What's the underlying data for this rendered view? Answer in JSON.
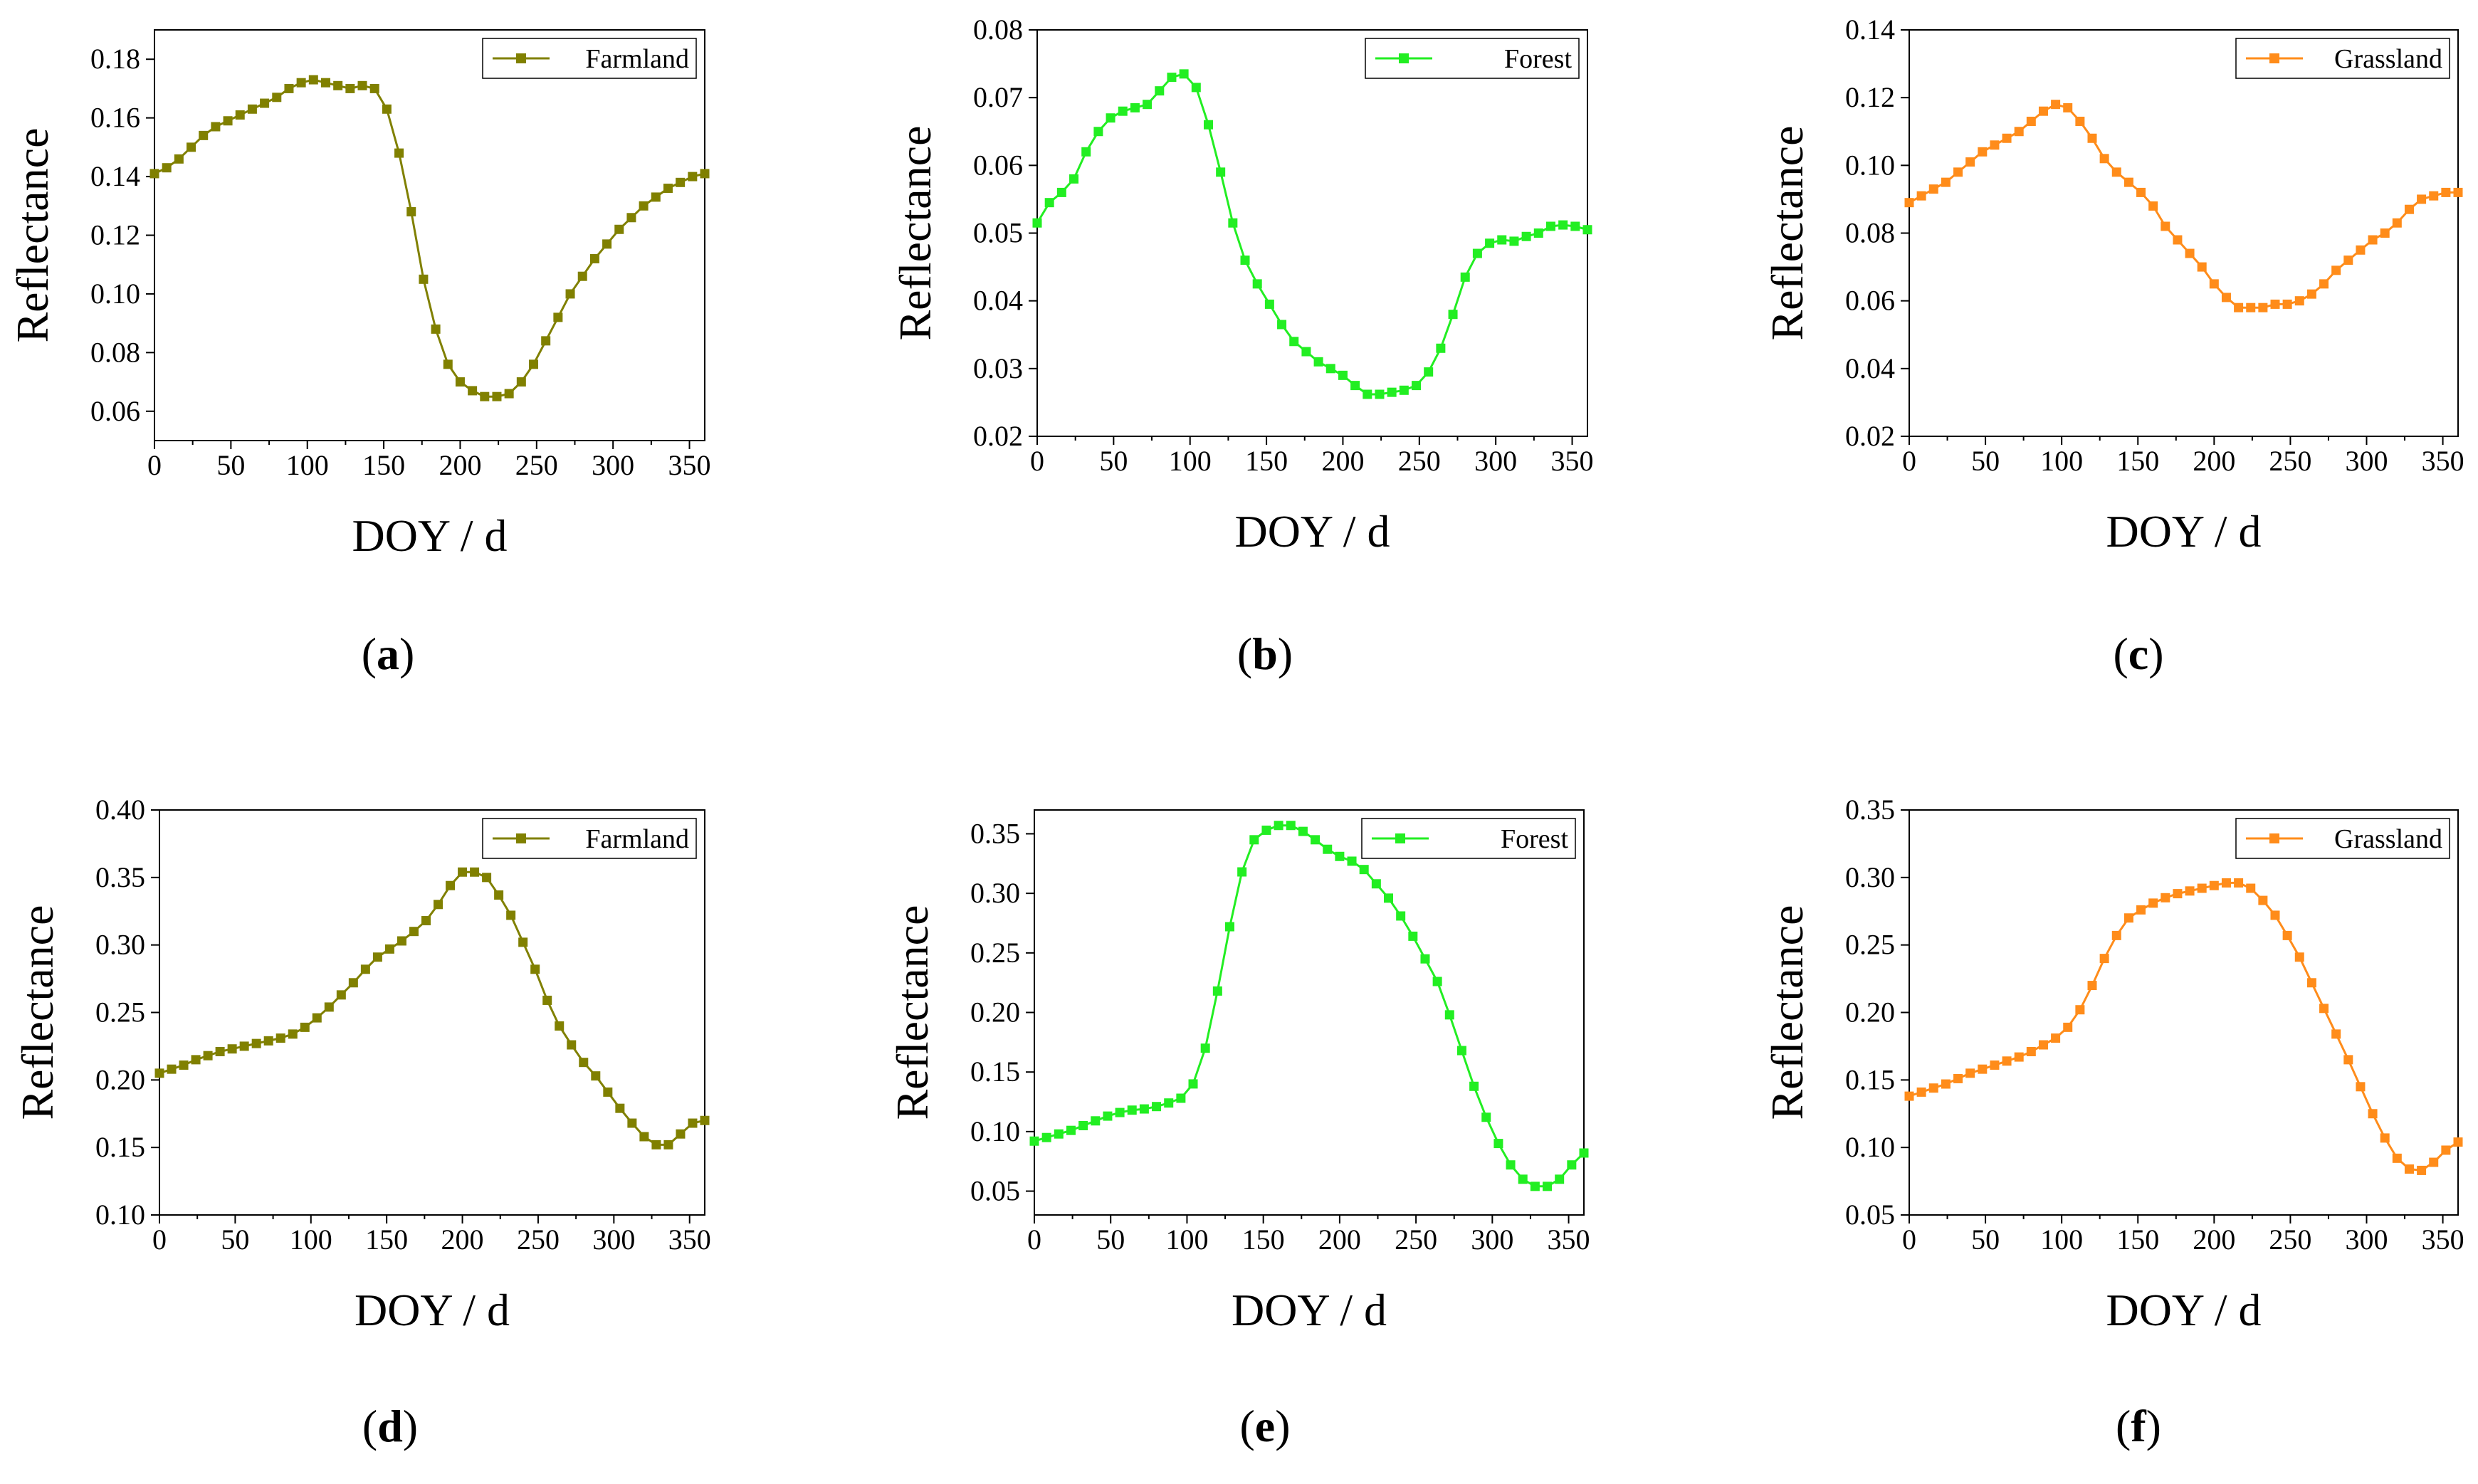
{
  "chart_data": [
    {
      "id": "a",
      "type": "line",
      "caption": "a",
      "xlabel": "DOY / d",
      "ylabel": "Reflectance",
      "xlim": [
        0,
        360
      ],
      "ylim": [
        0.05,
        0.19
      ],
      "xticks": [
        0,
        50,
        100,
        150,
        200,
        250,
        300,
        350
      ],
      "xtick_labels": [
        "0",
        "50",
        "100",
        "150",
        "200",
        "250",
        "300",
        "350"
      ],
      "yticks": [
        0.06,
        0.08,
        0.1,
        0.12,
        0.14,
        0.16,
        0.18
      ],
      "ytick_labels": [
        "0.06",
        "0.08",
        "0.10",
        "0.12",
        "0.14",
        "0.16",
        "0.18"
      ],
      "legend_position": "top-right",
      "series": [
        {
          "name": "Farmland",
          "color": "#808000",
          "x": [
            0,
            8,
            16,
            24,
            32,
            40,
            48,
            56,
            64,
            72,
            80,
            88,
            96,
            104,
            112,
            120,
            128,
            136,
            144,
            152,
            160,
            168,
            176,
            184,
            192,
            200,
            208,
            216,
            224,
            232,
            240,
            248,
            256,
            264,
            272,
            280,
            288,
            296,
            304,
            312,
            320,
            328,
            336,
            344,
            352,
            360
          ],
          "values": [
            0.141,
            0.143,
            0.146,
            0.15,
            0.154,
            0.157,
            0.159,
            0.161,
            0.163,
            0.165,
            0.167,
            0.17,
            0.172,
            0.173,
            0.172,
            0.171,
            0.17,
            0.171,
            0.17,
            0.163,
            0.148,
            0.128,
            0.105,
            0.088,
            0.076,
            0.07,
            0.067,
            0.065,
            0.065,
            0.066,
            0.07,
            0.076,
            0.084,
            0.092,
            0.1,
            0.106,
            0.112,
            0.117,
            0.122,
            0.126,
            0.13,
            0.133,
            0.136,
            0.138,
            0.14,
            0.141
          ]
        }
      ]
    },
    {
      "id": "b",
      "type": "line",
      "caption": "b",
      "xlabel": "DOY / d",
      "ylabel": "Reflectance",
      "xlim": [
        0,
        360
      ],
      "ylim": [
        0.02,
        0.08
      ],
      "xticks": [
        0,
        50,
        100,
        150,
        200,
        250,
        300,
        350
      ],
      "xtick_labels": [
        "0",
        "50",
        "100",
        "150",
        "200",
        "250",
        "300",
        "350"
      ],
      "yticks": [
        0.02,
        0.03,
        0.04,
        0.05,
        0.06,
        0.07,
        0.08
      ],
      "ytick_labels": [
        "0.02",
        "0.03",
        "0.04",
        "0.05",
        "0.06",
        "0.07",
        "0.08"
      ],
      "legend_position": "top-right",
      "series": [
        {
          "name": "Forest",
          "color": "#22ee22",
          "x": [
            0,
            8,
            16,
            24,
            32,
            40,
            48,
            56,
            64,
            72,
            80,
            88,
            96,
            104,
            112,
            120,
            128,
            136,
            144,
            152,
            160,
            168,
            176,
            184,
            192,
            200,
            208,
            216,
            224,
            232,
            240,
            248,
            256,
            264,
            272,
            280,
            288,
            296,
            304,
            312,
            320,
            328,
            336,
            344,
            352,
            360
          ],
          "values": [
            0.0515,
            0.0545,
            0.056,
            0.058,
            0.062,
            0.065,
            0.067,
            0.068,
            0.0685,
            0.069,
            0.071,
            0.073,
            0.0735,
            0.0715,
            0.066,
            0.059,
            0.0515,
            0.046,
            0.0425,
            0.0395,
            0.0365,
            0.034,
            0.0325,
            0.031,
            0.03,
            0.029,
            0.0275,
            0.0262,
            0.0262,
            0.0265,
            0.0268,
            0.0275,
            0.0295,
            0.033,
            0.038,
            0.0435,
            0.047,
            0.0485,
            0.049,
            0.0488,
            0.0495,
            0.05,
            0.051,
            0.0512,
            0.051,
            0.0505
          ]
        }
      ]
    },
    {
      "id": "c",
      "type": "line",
      "caption": "c",
      "xlabel": "DOY / d",
      "ylabel": "Reflectance",
      "xlim": [
        0,
        360
      ],
      "ylim": [
        0.02,
        0.14
      ],
      "xticks": [
        0,
        50,
        100,
        150,
        200,
        250,
        300,
        350
      ],
      "xtick_labels": [
        "0",
        "50",
        "100",
        "150",
        "200",
        "250",
        "300",
        "350"
      ],
      "yticks": [
        0.02,
        0.04,
        0.06,
        0.08,
        0.1,
        0.12,
        0.14
      ],
      "ytick_labels": [
        "0.02",
        "0.04",
        "0.06",
        "0.08",
        "0.10",
        "0.12",
        "0.14"
      ],
      "legend_position": "top-right",
      "series": [
        {
          "name": "Grassland",
          "color": "#ff8c1a",
          "x": [
            0,
            8,
            16,
            24,
            32,
            40,
            48,
            56,
            64,
            72,
            80,
            88,
            96,
            104,
            112,
            120,
            128,
            136,
            144,
            152,
            160,
            168,
            176,
            184,
            192,
            200,
            208,
            216,
            224,
            232,
            240,
            248,
            256,
            264,
            272,
            280,
            288,
            296,
            304,
            312,
            320,
            328,
            336,
            344,
            352,
            360
          ],
          "values": [
            0.089,
            0.091,
            0.093,
            0.095,
            0.098,
            0.101,
            0.104,
            0.106,
            0.108,
            0.11,
            0.113,
            0.116,
            0.118,
            0.117,
            0.113,
            0.108,
            0.102,
            0.098,
            0.095,
            0.092,
            0.088,
            0.082,
            0.078,
            0.074,
            0.07,
            0.065,
            0.061,
            0.058,
            0.058,
            0.058,
            0.059,
            0.059,
            0.06,
            0.062,
            0.065,
            0.069,
            0.072,
            0.075,
            0.078,
            0.08,
            0.083,
            0.087,
            0.09,
            0.091,
            0.092,
            0.092
          ]
        }
      ]
    },
    {
      "id": "d",
      "type": "line",
      "caption": "d",
      "xlabel": "DOY / d",
      "ylabel": "Reflectance",
      "xlim": [
        0,
        360
      ],
      "ylim": [
        0.1,
        0.4
      ],
      "xticks": [
        0,
        50,
        100,
        150,
        200,
        250,
        300,
        350
      ],
      "xtick_labels": [
        "0",
        "50",
        "100",
        "150",
        "200",
        "250",
        "300",
        "350"
      ],
      "yticks": [
        0.1,
        0.15,
        0.2,
        0.25,
        0.3,
        0.35,
        0.4
      ],
      "ytick_labels": [
        "0.10",
        "0.15",
        "0.20",
        "0.25",
        "0.30",
        "0.35",
        "0.40"
      ],
      "legend_position": "top-right",
      "series": [
        {
          "name": "Farmland",
          "color": "#808000",
          "x": [
            0,
            8,
            16,
            24,
            32,
            40,
            48,
            56,
            64,
            72,
            80,
            88,
            96,
            104,
            112,
            120,
            128,
            136,
            144,
            152,
            160,
            168,
            176,
            184,
            192,
            200,
            208,
            216,
            224,
            232,
            240,
            248,
            256,
            264,
            272,
            280,
            288,
            296,
            304,
            312,
            320,
            328,
            336,
            344,
            352,
            360
          ],
          "values": [
            0.205,
            0.208,
            0.211,
            0.215,
            0.218,
            0.221,
            0.223,
            0.225,
            0.227,
            0.229,
            0.231,
            0.234,
            0.239,
            0.246,
            0.254,
            0.263,
            0.272,
            0.282,
            0.291,
            0.297,
            0.303,
            0.31,
            0.318,
            0.33,
            0.344,
            0.354,
            0.354,
            0.35,
            0.337,
            0.322,
            0.302,
            0.282,
            0.259,
            0.24,
            0.226,
            0.213,
            0.203,
            0.191,
            0.179,
            0.168,
            0.158,
            0.152,
            0.152,
            0.16,
            0.168,
            0.17
          ]
        }
      ]
    },
    {
      "id": "e",
      "type": "line",
      "caption": "e",
      "xlabel": "DOY / d",
      "ylabel": "Reflectance",
      "xlim": [
        0,
        360
      ],
      "ylim": [
        0.03,
        0.37
      ],
      "xticks": [
        0,
        50,
        100,
        150,
        200,
        250,
        300,
        350
      ],
      "xtick_labels": [
        "0",
        "50",
        "100",
        "150",
        "200",
        "250",
        "300",
        "350"
      ],
      "yticks": [
        0.05,
        0.1,
        0.15,
        0.2,
        0.25,
        0.3,
        0.35
      ],
      "ytick_labels": [
        "0.05",
        "0.10",
        "0.15",
        "0.20",
        "0.25",
        "0.30",
        "0.35"
      ],
      "legend_position": "top-right",
      "series": [
        {
          "name": "Forest",
          "color": "#22ee22",
          "x": [
            0,
            8,
            16,
            24,
            32,
            40,
            48,
            56,
            64,
            72,
            80,
            88,
            96,
            104,
            112,
            120,
            128,
            136,
            144,
            152,
            160,
            168,
            176,
            184,
            192,
            200,
            208,
            216,
            224,
            232,
            240,
            248,
            256,
            264,
            272,
            280,
            288,
            296,
            304,
            312,
            320,
            328,
            336,
            344,
            352,
            360
          ],
          "values": [
            0.092,
            0.095,
            0.098,
            0.101,
            0.105,
            0.109,
            0.113,
            0.116,
            0.118,
            0.119,
            0.121,
            0.124,
            0.128,
            0.14,
            0.17,
            0.218,
            0.272,
            0.318,
            0.345,
            0.353,
            0.357,
            0.357,
            0.352,
            0.345,
            0.337,
            0.331,
            0.327,
            0.32,
            0.308,
            0.296,
            0.281,
            0.264,
            0.245,
            0.226,
            0.198,
            0.168,
            0.138,
            0.112,
            0.09,
            0.072,
            0.06,
            0.054,
            0.054,
            0.06,
            0.072,
            0.082
          ]
        }
      ]
    },
    {
      "id": "f",
      "type": "line",
      "caption": "f",
      "xlabel": "DOY / d",
      "ylabel": "Reflectance",
      "xlim": [
        0,
        360
      ],
      "ylim": [
        0.05,
        0.35
      ],
      "xticks": [
        0,
        50,
        100,
        150,
        200,
        250,
        300,
        350
      ],
      "xtick_labels": [
        "0",
        "50",
        "100",
        "150",
        "200",
        "250",
        "300",
        "350"
      ],
      "yticks": [
        0.05,
        0.1,
        0.15,
        0.2,
        0.25,
        0.3,
        0.35
      ],
      "ytick_labels": [
        "0.05",
        "0.10",
        "0.15",
        "0.20",
        "0.25",
        "0.30",
        "0.35"
      ],
      "legend_position": "top-right",
      "series": [
        {
          "name": "Grassland",
          "color": "#ff8c1a",
          "x": [
            0,
            8,
            16,
            24,
            32,
            40,
            48,
            56,
            64,
            72,
            80,
            88,
            96,
            104,
            112,
            120,
            128,
            136,
            144,
            152,
            160,
            168,
            176,
            184,
            192,
            200,
            208,
            216,
            224,
            232,
            240,
            248,
            256,
            264,
            272,
            280,
            288,
            296,
            304,
            312,
            320,
            328,
            336,
            344,
            352,
            360
          ],
          "values": [
            0.138,
            0.141,
            0.144,
            0.147,
            0.151,
            0.155,
            0.158,
            0.161,
            0.164,
            0.167,
            0.171,
            0.176,
            0.181,
            0.189,
            0.202,
            0.22,
            0.24,
            0.257,
            0.27,
            0.276,
            0.281,
            0.285,
            0.288,
            0.29,
            0.292,
            0.294,
            0.296,
            0.296,
            0.292,
            0.283,
            0.272,
            0.257,
            0.241,
            0.222,
            0.203,
            0.184,
            0.165,
            0.145,
            0.125,
            0.107,
            0.092,
            0.084,
            0.083,
            0.089,
            0.098,
            0.104
          ]
        }
      ]
    }
  ]
}
